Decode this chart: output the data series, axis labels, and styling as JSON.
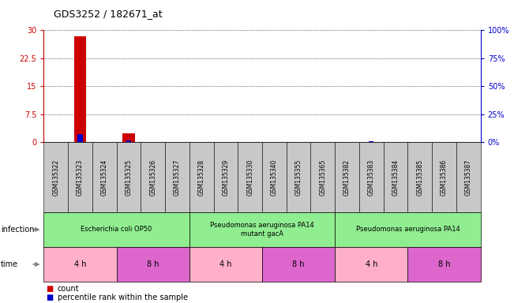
{
  "title": "GDS3252 / 182671_at",
  "samples": [
    "GSM135322",
    "GSM135323",
    "GSM135324",
    "GSM135325",
    "GSM135326",
    "GSM135327",
    "GSM135328",
    "GSM135329",
    "GSM135330",
    "GSM135340",
    "GSM135355",
    "GSM135365",
    "GSM135382",
    "GSM135383",
    "GSM135384",
    "GSM135385",
    "GSM135386",
    "GSM135387"
  ],
  "count_values": [
    0,
    28.5,
    0,
    2.5,
    0,
    0,
    0,
    0,
    0,
    0,
    0,
    0,
    0,
    0,
    0,
    0,
    0,
    0
  ],
  "percentile_values": [
    0,
    7.5,
    0,
    2.0,
    0,
    0,
    0,
    0,
    0,
    0,
    0,
    0,
    0,
    0.9,
    0,
    0,
    0,
    0
  ],
  "count_color": "#CC0000",
  "percentile_color": "#0000CC",
  "ylim_left": [
    0,
    30
  ],
  "ylim_right": [
    0,
    100
  ],
  "yticks_left": [
    0,
    7.5,
    15,
    22.5,
    30
  ],
  "yticks_right": [
    0,
    25,
    50,
    75,
    100
  ],
  "ytick_labels_left": [
    "0",
    "7.5",
    "15",
    "22.5",
    "30"
  ],
  "ytick_labels_right": [
    "0%",
    "25%",
    "50%",
    "75%",
    "100%"
  ],
  "infection_groups": [
    {
      "label": "Escherichia coli OP50",
      "start": 0,
      "end": 6,
      "color": "#90EE90"
    },
    {
      "label": "Pseudomonas aeruginosa PA14\nmutant gacA",
      "start": 6,
      "end": 12,
      "color": "#90EE90"
    },
    {
      "label": "Pseudomonas aeruginosa PA14",
      "start": 12,
      "end": 18,
      "color": "#90EE90"
    }
  ],
  "time_groups": [
    {
      "label": "4 h",
      "start": 0,
      "end": 3,
      "color": "#FFB0C8"
    },
    {
      "label": "8 h",
      "start": 3,
      "end": 6,
      "color": "#DD66CC"
    },
    {
      "label": "4 h",
      "start": 6,
      "end": 9,
      "color": "#FFB0C8"
    },
    {
      "label": "8 h",
      "start": 9,
      "end": 12,
      "color": "#DD66CC"
    },
    {
      "label": "4 h",
      "start": 12,
      "end": 15,
      "color": "#FFB0C8"
    },
    {
      "label": "8 h",
      "start": 15,
      "end": 18,
      "color": "#DD66CC"
    }
  ],
  "count_bar_width": 0.5,
  "pct_bar_width": 0.2,
  "bg_color": "#FFFFFF",
  "sample_box_color": "#C8C8C8"
}
